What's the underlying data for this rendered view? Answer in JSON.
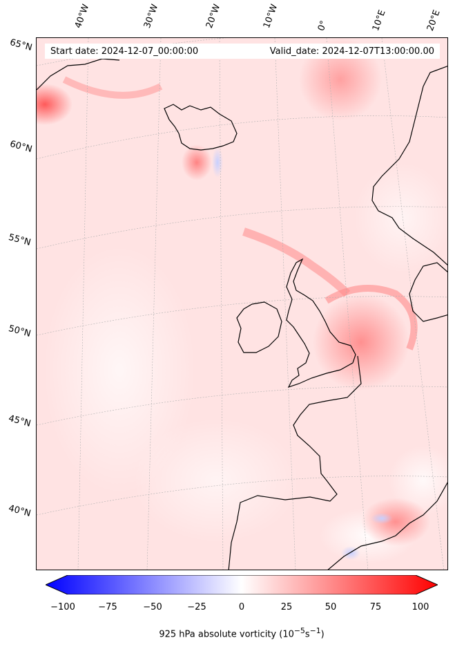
{
  "map": {
    "start_label": "Start date: 2024-12-07_00:00:00",
    "valid_label": "Valid_date: 2024-12-07T13:00:00.00",
    "lon_labels": [
      "40°W",
      "30°W",
      "20°W",
      "10°W",
      "0°",
      "10°E",
      "20°E"
    ],
    "lat_labels": [
      "65°N",
      "60°N",
      "55°N",
      "50°N",
      "45°N",
      "40°N"
    ],
    "colors": {
      "coast": "#000000",
      "grid": "#b0b0b0",
      "min": "#0000ff",
      "mid": "#ffffff",
      "max": "#ff0000"
    }
  },
  "colorbar": {
    "ticks": [
      "−100",
      "−75",
      "−50",
      "−25",
      "0",
      "25",
      "50",
      "75",
      "100"
    ],
    "label": "925 hPa absolute vorticity (10",
    "label_exp1": "−5",
    "label_mid": "s",
    "label_exp2": "−1",
    "label_end": ")",
    "range": [
      -100,
      100
    ]
  }
}
